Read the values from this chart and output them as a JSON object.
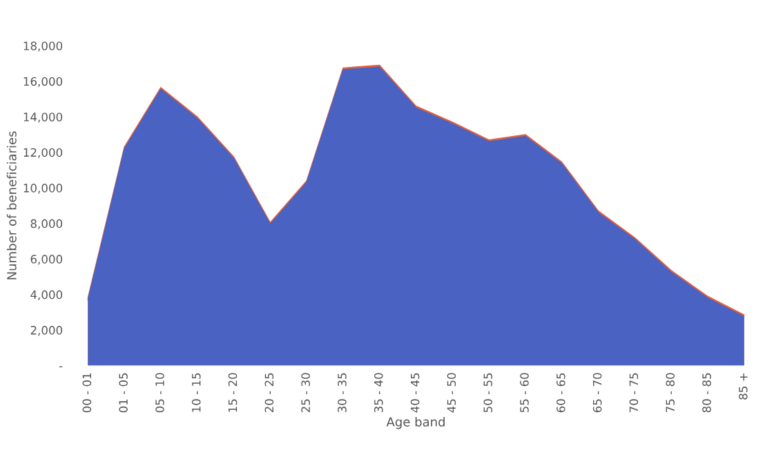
{
  "chart_data": {
    "type": "area",
    "xlabel": "Age band",
    "ylabel": "Number of beneficiaries",
    "categories": [
      "00 - 01",
      "01 - 05",
      "05 - 10",
      "10 - 15",
      "15 - 20",
      "20 - 25",
      "25 - 30",
      "30 - 35",
      "35 - 40",
      "40 - 45",
      "45 - 50",
      "50 - 55",
      "55 - 60",
      "60 - 65",
      "65 - 70",
      "70 - 75",
      "75 - 80",
      "80 - 85",
      "85 +"
    ],
    "series": [
      {
        "color": "#e0603e",
        "values": [
          3800,
          12300,
          15650,
          14000,
          11750,
          8050,
          10400,
          16750,
          16900,
          14600,
          13700,
          12700,
          13000,
          11450,
          8700,
          7200,
          5350,
          3900,
          2850
        ]
      },
      {
        "color": "#4a62c2",
        "values": [
          3700,
          12200,
          15550,
          13900,
          11650,
          7950,
          10300,
          16650,
          16800,
          14500,
          13600,
          12600,
          12900,
          11350,
          8600,
          7100,
          5250,
          3800,
          2750
        ]
      }
    ],
    "ylim": [
      0,
      18000
    ],
    "yticks": [
      {
        "value": 0,
        "label": "-"
      },
      {
        "value": 2000,
        "label": "2,000"
      },
      {
        "value": 4000,
        "label": "4,000"
      },
      {
        "value": 6000,
        "label": "6,000"
      },
      {
        "value": 8000,
        "label": "8,000"
      },
      {
        "value": 10000,
        "label": "10,000"
      },
      {
        "value": 12000,
        "label": "12,000"
      },
      {
        "value": 14000,
        "label": "14,000"
      },
      {
        "value": 16000,
        "label": "16,000"
      },
      {
        "value": 18000,
        "label": "18,000"
      }
    ],
    "grid": false
  }
}
